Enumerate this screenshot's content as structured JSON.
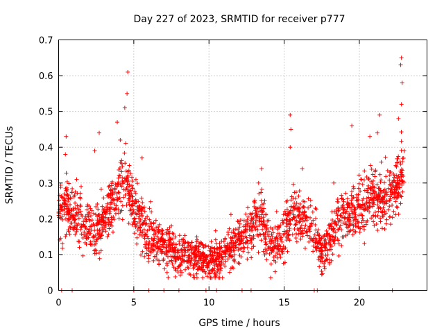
{
  "chart_data": {
    "type": "scatter",
    "title": "Day 227 of 2023, SRMTID for receiver p777",
    "xlabel": "GPS time / hours",
    "ylabel": "SRMTID / TECUs",
    "xlim": [
      0,
      24.5
    ],
    "ylim": [
      0,
      0.7
    ],
    "x_ticks": [
      0,
      5,
      10,
      15,
      20
    ],
    "x_tick_labels": [
      "0",
      "5",
      "10",
      "15",
      "20"
    ],
    "y_ticks": [
      0,
      0.1,
      0.2,
      0.3,
      0.4,
      0.5,
      0.6,
      0.7
    ],
    "y_tick_labels": [
      "0",
      "0.1",
      "0.2",
      "0.3",
      "0.4",
      "0.5",
      "0.6",
      "0.7"
    ],
    "grid": true,
    "marker": "+",
    "color": "#ff0000",
    "series": [
      {
        "name": "SRMTID",
        "envelope": [
          {
            "x": 0.0,
            "y": 0.22
          },
          {
            "x": 0.5,
            "y": 0.24
          },
          {
            "x": 1.0,
            "y": 0.22
          },
          {
            "x": 1.5,
            "y": 0.19
          },
          {
            "x": 2.0,
            "y": 0.18
          },
          {
            "x": 2.5,
            "y": 0.17
          },
          {
            "x": 3.0,
            "y": 0.2
          },
          {
            "x": 3.5,
            "y": 0.24
          },
          {
            "x": 4.0,
            "y": 0.29
          },
          {
            "x": 4.5,
            "y": 0.3
          },
          {
            "x": 5.0,
            "y": 0.24
          },
          {
            "x": 5.5,
            "y": 0.19
          },
          {
            "x": 6.0,
            "y": 0.16
          },
          {
            "x": 6.5,
            "y": 0.14
          },
          {
            "x": 7.0,
            "y": 0.12
          },
          {
            "x": 7.5,
            "y": 0.11
          },
          {
            "x": 8.0,
            "y": 0.1
          },
          {
            "x": 8.5,
            "y": 0.1
          },
          {
            "x": 9.0,
            "y": 0.09
          },
          {
            "x": 9.5,
            "y": 0.09
          },
          {
            "x": 10.0,
            "y": 0.08
          },
          {
            "x": 10.5,
            "y": 0.09
          },
          {
            "x": 11.0,
            "y": 0.1
          },
          {
            "x": 11.5,
            "y": 0.12
          },
          {
            "x": 12.0,
            "y": 0.14
          },
          {
            "x": 12.5,
            "y": 0.16
          },
          {
            "x": 13.0,
            "y": 0.18
          },
          {
            "x": 13.5,
            "y": 0.2
          },
          {
            "x": 14.0,
            "y": 0.13
          },
          {
            "x": 14.5,
            "y": 0.13
          },
          {
            "x": 15.0,
            "y": 0.15
          },
          {
            "x": 15.5,
            "y": 0.22
          },
          {
            "x": 16.0,
            "y": 0.21
          },
          {
            "x": 16.5,
            "y": 0.19
          },
          {
            "x": 17.0,
            "y": 0.16
          },
          {
            "x": 17.5,
            "y": 0.11
          },
          {
            "x": 18.0,
            "y": 0.14
          },
          {
            "x": 18.5,
            "y": 0.18
          },
          {
            "x": 19.0,
            "y": 0.21
          },
          {
            "x": 19.5,
            "y": 0.23
          },
          {
            "x": 20.0,
            "y": 0.23
          },
          {
            "x": 20.5,
            "y": 0.26
          },
          {
            "x": 21.0,
            "y": 0.27
          },
          {
            "x": 21.5,
            "y": 0.25
          },
          {
            "x": 22.0,
            "y": 0.26
          },
          {
            "x": 22.5,
            "y": 0.3
          },
          {
            "x": 23.0,
            "y": 0.35
          }
        ],
        "spread": 0.07,
        "n_points": 2200,
        "x_range": [
          0.0,
          23.0
        ],
        "peaks": [
          {
            "x": 4.6,
            "y": 0.61
          },
          {
            "x": 4.55,
            "y": 0.55
          },
          {
            "x": 4.4,
            "y": 0.51
          },
          {
            "x": 3.9,
            "y": 0.47
          },
          {
            "x": 2.7,
            "y": 0.44
          },
          {
            "x": 2.4,
            "y": 0.39
          },
          {
            "x": 0.5,
            "y": 0.43
          },
          {
            "x": 0.45,
            "y": 0.38
          },
          {
            "x": 5.55,
            "y": 0.37
          },
          {
            "x": 15.4,
            "y": 0.49
          },
          {
            "x": 15.45,
            "y": 0.45
          },
          {
            "x": 15.4,
            "y": 0.4
          },
          {
            "x": 13.5,
            "y": 0.34
          },
          {
            "x": 16.2,
            "y": 0.34
          },
          {
            "x": 19.5,
            "y": 0.46
          },
          {
            "x": 20.7,
            "y": 0.43
          },
          {
            "x": 21.2,
            "y": 0.44
          },
          {
            "x": 21.35,
            "y": 0.49
          },
          {
            "x": 22.6,
            "y": 0.48
          },
          {
            "x": 22.8,
            "y": 0.65
          },
          {
            "x": 22.75,
            "y": 0.63
          },
          {
            "x": 22.85,
            "y": 0.58
          },
          {
            "x": 22.8,
            "y": 0.52
          },
          {
            "x": 4.1,
            "y": 0.42
          },
          {
            "x": 1.2,
            "y": 0.31
          },
          {
            "x": 1.5,
            "y": 0.29
          },
          {
            "x": 7.5,
            "y": 0.18
          },
          {
            "x": 13.3,
            "y": 0.3
          },
          {
            "x": 14.5,
            "y": 0.22
          },
          {
            "x": 18.3,
            "y": 0.3
          }
        ],
        "zero_points": [
          0.2,
          0.9,
          5.0,
          6.0,
          7.0,
          8.0,
          9.8,
          10.5,
          12.2,
          12.8,
          17.0,
          17.2,
          22.2
        ]
      }
    ]
  }
}
